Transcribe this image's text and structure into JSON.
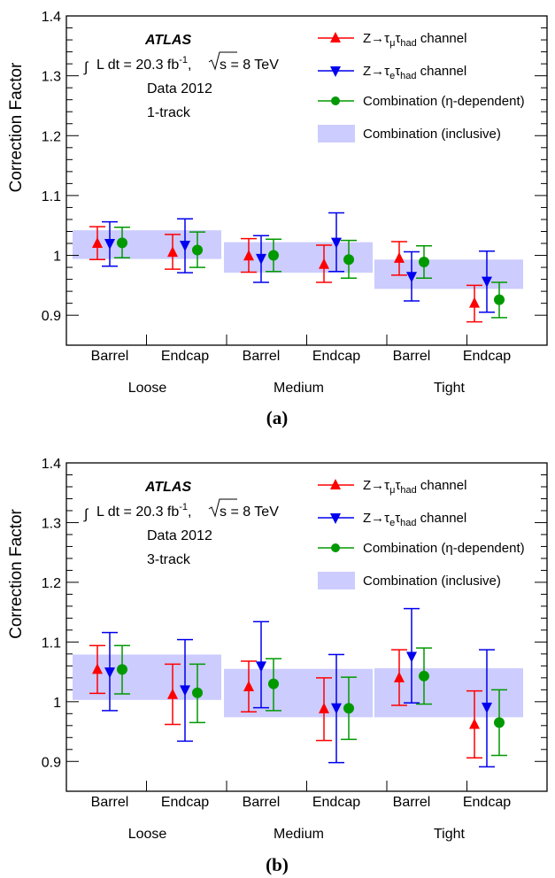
{
  "chart_data": [
    {
      "type": "scatter",
      "panel_label": "(a)",
      "ylabel": "Correction Factor",
      "ylim": [
        0.85,
        1.4
      ],
      "yticks": [
        "0.9",
        "1",
        "1.1",
        "1.2",
        "1.3",
        "1.4"
      ],
      "bins": [
        "Barrel",
        "Endcap",
        "Barrel",
        "Endcap",
        "Barrel",
        "Endcap"
      ],
      "groups": [
        "Loose",
        "Medium",
        "Tight"
      ],
      "atlas_label": "ATLAS",
      "lumi_text": "L dt = 20.3 fb",
      "lumi_sup": "-1",
      "energy_text": "s = 8 TeV",
      "data_text": "Data 2012",
      "track_text": "1-track",
      "legend_position": "top-right",
      "series": [
        {
          "name": "Z→τμτhad channel",
          "label": "Z→τ_μτ_had channel",
          "color": "#ff0000",
          "marker": "triangle-up",
          "values": [
            1.02,
            1.005,
            0.999,
            0.985,
            0.995,
            0.92
          ],
          "err_up": [
            1.048,
            1.035,
            1.028,
            1.017,
            1.023,
            0.95
          ],
          "err_down": [
            0.993,
            0.977,
            0.972,
            0.955,
            0.967,
            0.889
          ]
        },
        {
          "name": "Z→τeτhad channel",
          "label": "Z→τ_eτ_had channel",
          "color": "#0000ee",
          "marker": "triangle-down",
          "values": [
            1.02,
            1.017,
            0.995,
            1.022,
            0.965,
            0.957
          ],
          "err_up": [
            1.056,
            1.061,
            1.033,
            1.071,
            1.006,
            1.007
          ],
          "err_down": [
            0.982,
            0.971,
            0.955,
            0.973,
            0.924,
            0.905
          ]
        },
        {
          "name": "Combination (η-dependent)",
          "label": "Combination (η-dependent)",
          "color": "#009900",
          "marker": "circle",
          "values": [
            1.021,
            1.009,
            1.0,
            0.993,
            0.989,
            0.926
          ],
          "err_up": [
            1.047,
            1.039,
            1.027,
            1.025,
            1.016,
            0.955
          ],
          "err_down": [
            0.996,
            0.98,
            0.973,
            0.962,
            0.962,
            0.896
          ]
        }
      ],
      "bands": {
        "name": "Combination (inclusive)",
        "label": "Combination (inclusive)",
        "color": "#ccccff",
        "ranges": [
          [
            0.994,
            1.042
          ],
          [
            0.971,
            1.022
          ],
          [
            0.944,
            0.993
          ]
        ]
      }
    },
    {
      "type": "scatter",
      "panel_label": "(b)",
      "ylabel": "Correction Factor",
      "ylim": [
        0.85,
        1.4
      ],
      "yticks": [
        "0.9",
        "1",
        "1.1",
        "1.2",
        "1.3",
        "1.4"
      ],
      "bins": [
        "Barrel",
        "Endcap",
        "Barrel",
        "Endcap",
        "Barrel",
        "Endcap"
      ],
      "groups": [
        "Loose",
        "Medium",
        "Tight"
      ],
      "atlas_label": "ATLAS",
      "lumi_text": "L dt = 20.3 fb",
      "lumi_sup": "-1",
      "energy_text": "s = 8 TeV",
      "data_text": "Data 2012",
      "track_text": "3-track",
      "legend_position": "top-right",
      "series": [
        {
          "name": "Z→τμτhad channel",
          "label": "Z→τ_μτ_had channel",
          "color": "#ff0000",
          "marker": "triangle-up",
          "values": [
            1.054,
            1.012,
            1.025,
            0.988,
            1.04,
            0.962
          ],
          "err_up": [
            1.094,
            1.063,
            1.068,
            1.04,
            1.087,
            1.018
          ],
          "err_down": [
            1.014,
            0.962,
            0.983,
            0.935,
            0.994,
            0.906
          ]
        },
        {
          "name": "Z→τeτhad channel",
          "label": "Z→τ_eτ_had channel",
          "color": "#0000ee",
          "marker": "triangle-down",
          "values": [
            1.05,
            1.02,
            1.06,
            0.99,
            1.076,
            0.991
          ],
          "err_up": [
            1.116,
            1.104,
            1.134,
            1.079,
            1.156,
            1.087
          ],
          "err_down": [
            0.985,
            0.934,
            0.99,
            0.898,
            0.998,
            0.891
          ]
        },
        {
          "name": "Combination (η-dependent)",
          "label": "Combination (η-dependent)",
          "color": "#009900",
          "marker": "circle",
          "values": [
            1.054,
            1.015,
            1.03,
            0.989,
            1.043,
            0.965
          ],
          "err_up": [
            1.094,
            1.063,
            1.072,
            1.041,
            1.09,
            1.02
          ],
          "err_down": [
            1.013,
            0.965,
            0.985,
            0.937,
            0.996,
            0.91
          ]
        }
      ],
      "bands": {
        "name": "Combination (inclusive)",
        "label": "Combination (inclusive)",
        "color": "#ccccff",
        "ranges": [
          [
            1.003,
            1.079
          ],
          [
            0.974,
            1.055
          ],
          [
            0.974,
            1.056
          ]
        ]
      }
    }
  ]
}
